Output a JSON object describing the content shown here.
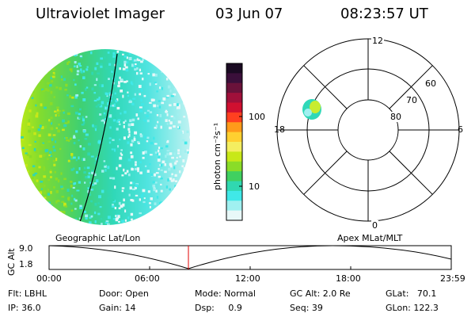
{
  "header": {
    "instrument": "Ultraviolet Imager",
    "date": "03 Jun 07",
    "time": "08:23:57 UT"
  },
  "colorbar": {
    "unit_label": "photon cm⁻²s⁻¹",
    "ticks": [
      "100",
      "10"
    ],
    "colors": [
      "#1a0a22",
      "#3a0f3a",
      "#6a123a",
      "#a0103a",
      "#d01030",
      "#ff4020",
      "#ff9a1a",
      "#ffd030",
      "#f4ee60",
      "#c8e818",
      "#8adc28",
      "#40d060",
      "#30d8b0",
      "#40e8e8",
      "#a0f0f0",
      "#e8f8f8"
    ]
  },
  "polar": {
    "mlt_labels": {
      "top": "12",
      "left": "18",
      "right": "6",
      "bottom": "0"
    },
    "lat_labels": [
      "60",
      "70",
      "80"
    ]
  },
  "track": {
    "left_label": "Geographic Lat/Lon",
    "right_label": "Apex  MLat/MLT",
    "ylabel": "GC Alt",
    "y_ticks": [
      "9.0",
      "1.8"
    ],
    "x_ticks": [
      "00:00",
      "06:00",
      "12:00",
      "18:00",
      "23:59"
    ]
  },
  "info": {
    "flt": "Flt: LBHL",
    "ip": "IP: 36.0",
    "door": "Door: Open",
    "gain": "Gain: 14",
    "mode": "Mode: Normal",
    "dsp": "Dsp:     0.9",
    "gc_alt": "GC Alt: 2.0 Re",
    "seq": "Seq: 39",
    "glat": "GLat:   70.1",
    "glon": "GLon: 122.3"
  }
}
